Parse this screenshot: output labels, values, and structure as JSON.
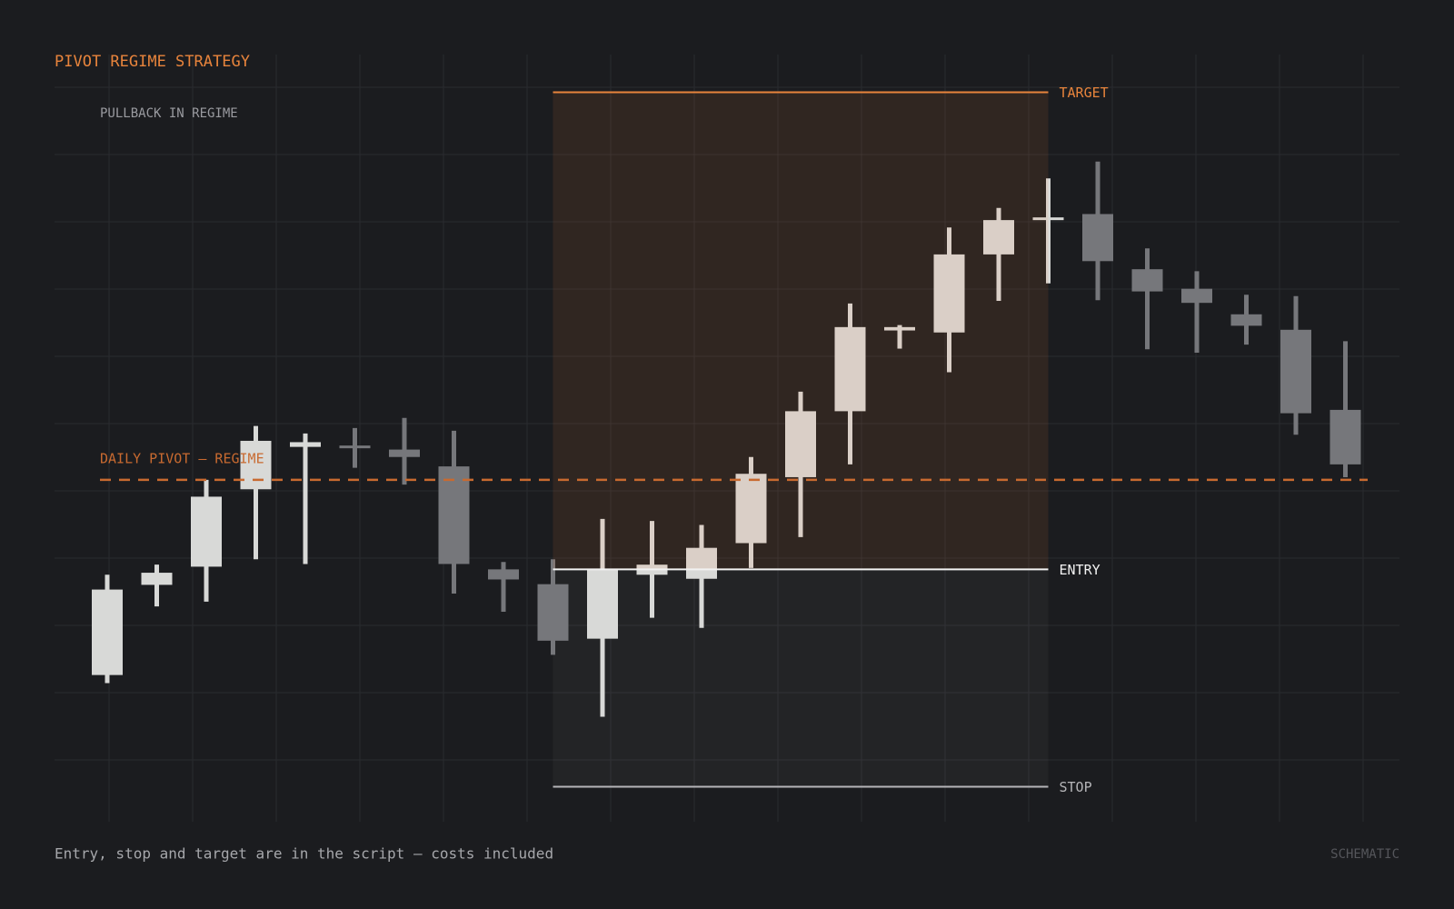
{
  "chart_data": {
    "type": "candlestick",
    "title": "PIVOT REGIME STRATEGY",
    "subtitle": "PULLBACK IN REGIME",
    "footer": "Entry, stop and target are in the script — costs included",
    "badge": "SCHEMATIC",
    "categories": [
      null,
      null,
      null,
      null,
      null,
      null,
      null,
      null,
      null,
      null,
      null,
      null,
      null,
      null,
      null,
      null,
      null,
      null,
      null,
      null,
      null,
      null,
      null,
      null,
      null,
      null
    ],
    "open": [
      21.8,
      35.2,
      37.9,
      49.4,
      55.7,
      55.9,
      55.3,
      52.8,
      37.5,
      35.3,
      27.2,
      36.7,
      36.1,
      41.4,
      51.2,
      61.0,
      73.0,
      72.7,
      84.3,
      89.5,
      90.3,
      82.1,
      79.2,
      75.4,
      73.1,
      61.2
    ],
    "high": [
      36.7,
      38.2,
      50.8,
      58.8,
      57.7,
      58.5,
      60.0,
      58.1,
      38.6,
      39.0,
      45.0,
      44.7,
      44.1,
      54.2,
      63.9,
      77.0,
      73.8,
      88.3,
      91.2,
      95.6,
      98.1,
      85.2,
      81.8,
      78.3,
      78.1,
      71.4
    ],
    "low": [
      20.6,
      32.0,
      32.7,
      39.0,
      38.3,
      52.6,
      50.1,
      33.9,
      31.2,
      24.8,
      15.6,
      30.3,
      28.8,
      37.7,
      42.3,
      53.1,
      70.3,
      66.8,
      77.4,
      80.0,
      77.5,
      70.2,
      69.7,
      70.9,
      57.5,
      51.2
    ],
    "close": [
      34.5,
      37.0,
      48.3,
      56.6,
      56.4,
      55.6,
      54.2,
      38.3,
      36.0,
      26.9,
      37.5,
      38.2,
      40.7,
      51.7,
      61.0,
      73.5,
      73.5,
      84.3,
      89.4,
      89.8,
      83.3,
      78.8,
      77.1,
      73.7,
      60.7,
      53.1
    ],
    "up_color": "#d8d9d7",
    "down_color": "#76777b",
    "ylim": [
      0,
      114
    ],
    "grid": true,
    "levels": [
      {
        "label": "TARGET",
        "value": 108.4,
        "color": "#e8843c"
      },
      {
        "label": "ENTRY",
        "value": 37.5,
        "color": "#f2f2f2"
      },
      {
        "label": "STOP",
        "value": 5.2,
        "color": "#b5b5b8"
      }
    ],
    "pivot": {
      "label": "DAILY PIVOT — REGIME",
      "value": 50.8,
      "color": "#c86a30"
    }
  }
}
